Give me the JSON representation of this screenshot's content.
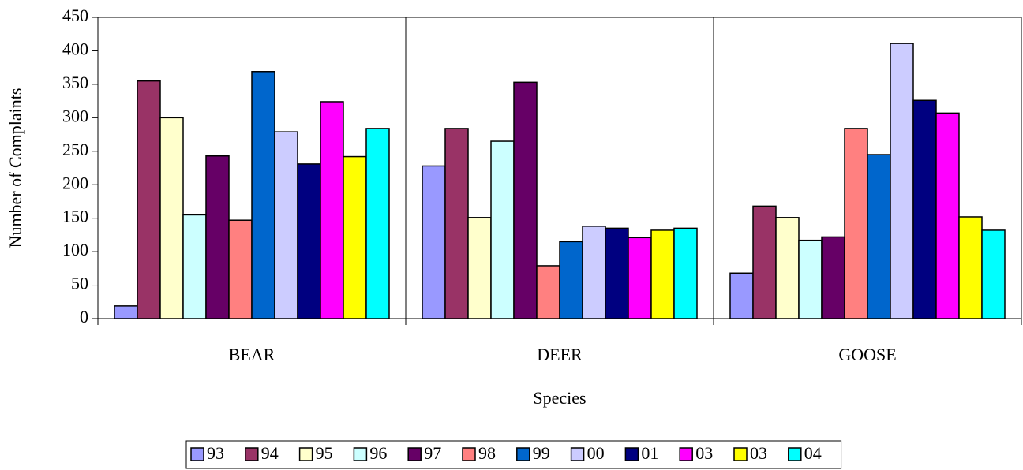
{
  "chart_data": {
    "type": "bar",
    "x_label": "Species",
    "y_label": "Number of Complaints",
    "categories": [
      "BEAR",
      "DEER",
      "GOOSE"
    ],
    "series": [
      {
        "name": "93",
        "color": "#9999ff",
        "values": [
          19,
          228,
          68
        ]
      },
      {
        "name": "94",
        "color": "#993366",
        "values": [
          355,
          284,
          168
        ]
      },
      {
        "name": "95",
        "color": "#ffffcc",
        "values": [
          300,
          151,
          151
        ]
      },
      {
        "name": "96",
        "color": "#ccffff",
        "values": [
          155,
          265,
          117
        ]
      },
      {
        "name": "97",
        "color": "#660066",
        "values": [
          243,
          353,
          122
        ]
      },
      {
        "name": "98",
        "color": "#ff8080",
        "values": [
          147,
          79,
          284
        ]
      },
      {
        "name": "99",
        "color": "#0066cc",
        "values": [
          369,
          115,
          245
        ]
      },
      {
        "name": "00",
        "color": "#ccccff",
        "values": [
          279,
          138,
          411
        ]
      },
      {
        "name": "01",
        "color": "#000080",
        "values": [
          231,
          135,
          326
        ]
      },
      {
        "name": "03",
        "color": "#ff00ff",
        "values": [
          324,
          121,
          307
        ]
      },
      {
        "name": "03",
        "color": "#ffff00",
        "values": [
          242,
          132,
          152
        ]
      },
      {
        "name": "04",
        "color": "#00ffff",
        "values": [
          284,
          135,
          132
        ]
      }
    ],
    "ylim": [
      0,
      450
    ],
    "yticks": [
      0,
      50,
      100,
      150,
      200,
      250,
      300,
      350,
      400,
      450
    ],
    "grid": false,
    "legend": "bottom"
  }
}
